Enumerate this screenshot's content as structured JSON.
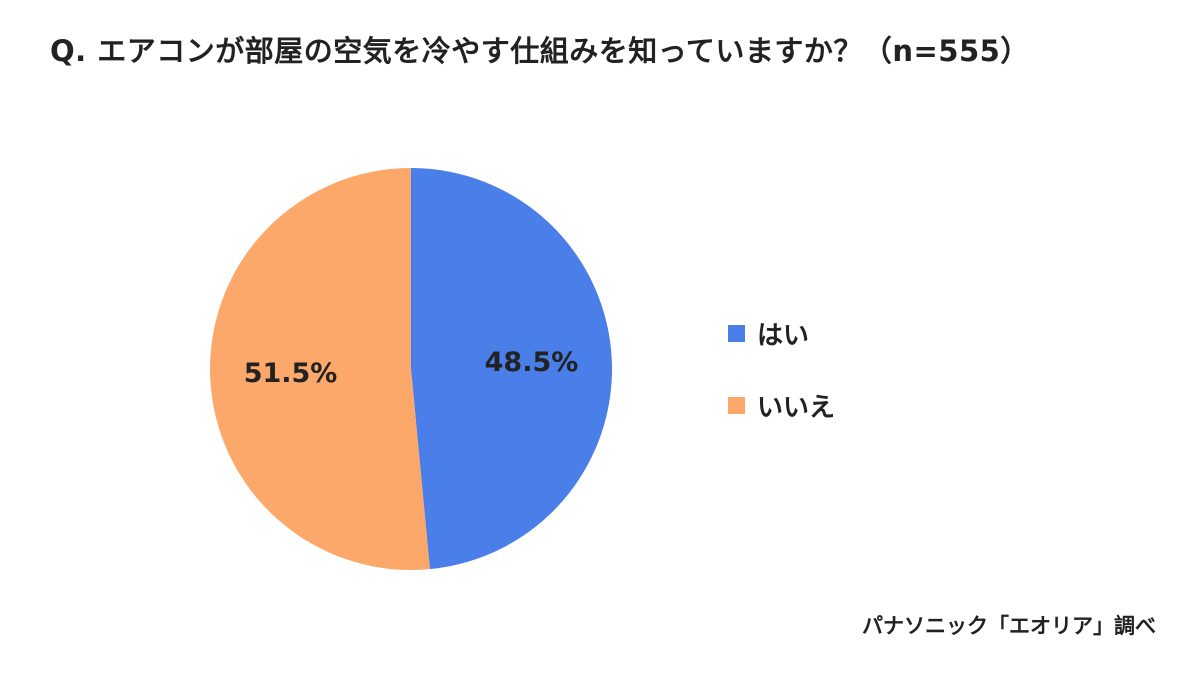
{
  "chart_data": {
    "type": "pie",
    "title": "Q. エアコンが部屋の空気を冷やす仕組みを知っていますか？（n=555）",
    "slices": [
      {
        "label": "はい",
        "value": 48.5,
        "display": "48.5%",
        "color": "#4a7ee8"
      },
      {
        "label": "いいえ",
        "value": 51.5,
        "display": "51.5%",
        "color": "#fca86b"
      }
    ],
    "legend_position": "right",
    "source": "パナソニック「エオリア」調べ"
  }
}
